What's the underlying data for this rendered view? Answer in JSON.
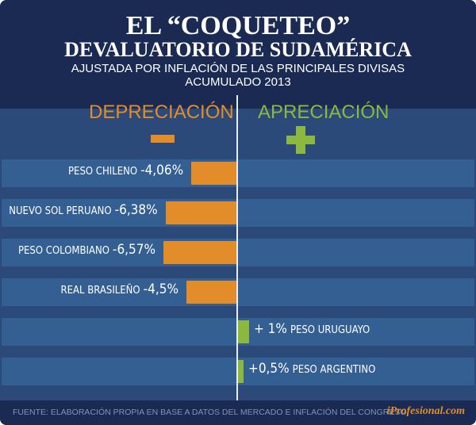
{
  "chart_data": {
    "type": "bar",
    "orientation": "horizontal",
    "title": "EL “COQUETEO”",
    "subtitle": "DEVALUATORIO DE SUDAMÉRICA",
    "subtitle2": "AJUSTADA POR INFLACIÓN DE LAS PRINCIPALES DIVISAS",
    "subtitle3": "ACUMULADO 2013",
    "negative_label": "DEPRECIACIÓN",
    "positive_label": "APRECIACIÓN",
    "unit": "%",
    "categories": [
      "PESO CHILENO",
      "NUEVO SOL PERUANO",
      "PESO COLOMBIANO",
      "REAL BRASILEÑO",
      "PESO URUGUAYO",
      "PESO ARGENTINO"
    ],
    "values": [
      -4.06,
      -6.38,
      -6.57,
      -4.5,
      1,
      0.5
    ],
    "value_labels": [
      "-4,06%",
      "-6,38%",
      "-6,57%",
      "-4,5%",
      "+ 1%",
      "+0,5%"
    ],
    "colors": {
      "negative": "#e38d2a",
      "positive": "#8cb83e"
    }
  },
  "footer": {
    "source": "FUENTE: ELABORACIÓN PROPIA EN BASE A DATOS DEL MERCADO E INFLACIÓN DEL CONGRESO",
    "brand": "iProfesional.com"
  }
}
